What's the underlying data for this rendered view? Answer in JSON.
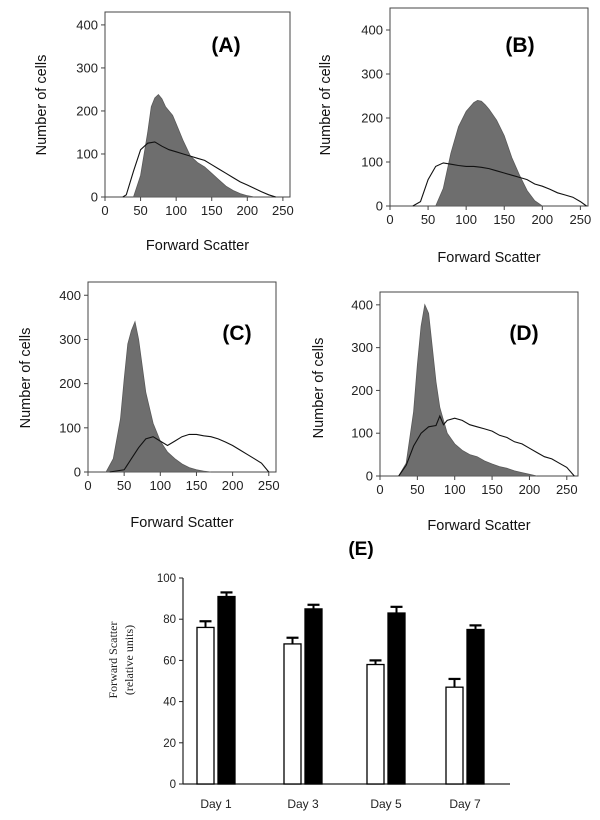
{
  "chart_data": [
    {
      "panel": "(A)",
      "type": "area",
      "xlabel": "Forward Scatter",
      "ylabel": "Number of cells",
      "xlim": [
        0,
        260
      ],
      "ylim": [
        0,
        430
      ],
      "xticks": [
        "0",
        "50",
        "100",
        "150",
        "200",
        "250"
      ],
      "yticks": [
        "0",
        "100",
        "200",
        "300",
        "400"
      ],
      "series": [
        {
          "style": "filled",
          "x": [
            40,
            50,
            60,
            65,
            70,
            75,
            80,
            85,
            90,
            95,
            100,
            110,
            120,
            130,
            140,
            150,
            160,
            170,
            180,
            190,
            200,
            210
          ],
          "y": [
            0,
            50,
            150,
            210,
            230,
            238,
            228,
            210,
            200,
            190,
            170,
            130,
            95,
            80,
            70,
            55,
            40,
            25,
            15,
            8,
            3,
            0
          ]
        },
        {
          "style": "outline",
          "x": [
            25,
            30,
            40,
            50,
            60,
            70,
            80,
            90,
            100,
            110,
            120,
            130,
            140,
            150,
            160,
            170,
            180,
            190,
            200,
            210,
            220,
            230,
            240
          ],
          "y": [
            0,
            5,
            60,
            110,
            125,
            128,
            118,
            110,
            105,
            100,
            95,
            90,
            85,
            75,
            65,
            55,
            45,
            35,
            28,
            20,
            12,
            5,
            0
          ]
        }
      ]
    },
    {
      "panel": "(B)",
      "type": "area",
      "xlabel": "Forward Scatter",
      "ylabel": "Number of cells",
      "xlim": [
        0,
        260
      ],
      "ylim": [
        0,
        450
      ],
      "xticks": [
        "0",
        "50",
        "100",
        "150",
        "200",
        "250"
      ],
      "yticks": [
        "0",
        "100",
        "200",
        "300",
        "400"
      ],
      "series": [
        {
          "style": "filled",
          "x": [
            60,
            70,
            80,
            90,
            100,
            110,
            115,
            120,
            125,
            130,
            140,
            150,
            160,
            170,
            180,
            190,
            200
          ],
          "y": [
            0,
            40,
            120,
            180,
            215,
            235,
            240,
            238,
            230,
            220,
            195,
            160,
            110,
            70,
            35,
            12,
            0
          ]
        },
        {
          "style": "outline",
          "x": [
            30,
            40,
            50,
            60,
            70,
            80,
            90,
            100,
            110,
            120,
            130,
            140,
            150,
            160,
            170,
            180,
            190,
            200,
            210,
            220,
            230,
            240,
            250,
            258
          ],
          "y": [
            0,
            10,
            60,
            90,
            98,
            95,
            92,
            90,
            90,
            88,
            85,
            80,
            75,
            70,
            65,
            60,
            50,
            45,
            38,
            30,
            25,
            20,
            10,
            0
          ]
        }
      ]
    },
    {
      "panel": "(C)",
      "type": "area",
      "xlabel": "Forward Scatter",
      "ylabel": "Number of cells",
      "xlim": [
        0,
        260
      ],
      "ylim": [
        0,
        430
      ],
      "xticks": [
        "0",
        "50",
        "100",
        "150",
        "200",
        "250"
      ],
      "yticks": [
        "0",
        "100",
        "200",
        "300",
        "400"
      ],
      "series": [
        {
          "style": "filled",
          "x": [
            25,
            35,
            45,
            50,
            55,
            60,
            65,
            70,
            75,
            80,
            90,
            100,
            110,
            120,
            130,
            140,
            150,
            160,
            170
          ],
          "y": [
            0,
            30,
            120,
            210,
            290,
            320,
            340,
            300,
            240,
            180,
            110,
            70,
            45,
            30,
            18,
            10,
            5,
            2,
            0
          ]
        },
        {
          "style": "outline",
          "x": [
            30,
            50,
            60,
            70,
            80,
            90,
            100,
            110,
            120,
            130,
            140,
            150,
            160,
            170,
            180,
            190,
            200,
            210,
            220,
            230,
            240,
            250
          ],
          "y": [
            0,
            5,
            30,
            55,
            75,
            80,
            70,
            60,
            70,
            80,
            85,
            85,
            82,
            80,
            75,
            68,
            60,
            50,
            40,
            30,
            20,
            0
          ]
        }
      ]
    },
    {
      "panel": "(D)",
      "type": "area",
      "xlabel": "Forward Scatter",
      "ylabel": "Number of cells",
      "xlim": [
        0,
        265
      ],
      "ylim": [
        0,
        430
      ],
      "xticks": [
        "0",
        "50",
        "100",
        "150",
        "200",
        "250"
      ],
      "yticks": [
        "0",
        "100",
        "200",
        "300",
        "400"
      ],
      "series": [
        {
          "style": "filled",
          "x": [
            25,
            35,
            45,
            50,
            55,
            60,
            65,
            70,
            75,
            80,
            90,
            100,
            110,
            120,
            130,
            140,
            150,
            160,
            170,
            180,
            190,
            200,
            210
          ],
          "y": [
            0,
            30,
            150,
            260,
            350,
            400,
            380,
            300,
            220,
            160,
            100,
            75,
            60,
            50,
            45,
            35,
            28,
            22,
            18,
            12,
            8,
            4,
            0
          ]
        },
        {
          "style": "outline",
          "x": [
            25,
            35,
            45,
            55,
            65,
            75,
            80,
            85,
            90,
            100,
            110,
            120,
            130,
            140,
            150,
            160,
            170,
            180,
            190,
            200,
            210,
            220,
            230,
            240,
            250,
            260
          ],
          "y": [
            0,
            25,
            70,
            100,
            115,
            118,
            140,
            120,
            130,
            135,
            130,
            120,
            115,
            110,
            105,
            95,
            90,
            80,
            75,
            65,
            55,
            45,
            40,
            30,
            20,
            0
          ]
        }
      ]
    },
    {
      "panel": "(E)",
      "type": "bar",
      "ylabel": "Forward Scatter",
      "ylabel2": "(relative units)",
      "ylim": [
        0,
        100
      ],
      "yticks": [
        "0",
        "20",
        "40",
        "60",
        "80",
        "100"
      ],
      "categories": [
        "Day 1",
        "Day 3",
        "Day 5",
        "Day 7"
      ],
      "series": [
        {
          "fill": "#ffffff",
          "values": [
            76,
            68,
            58,
            47
          ],
          "errors": [
            3,
            3,
            2,
            4
          ]
        },
        {
          "fill": "#000000",
          "values": [
            91,
            85,
            83,
            75
          ],
          "errors": [
            2,
            2,
            3,
            2
          ]
        }
      ]
    }
  ]
}
